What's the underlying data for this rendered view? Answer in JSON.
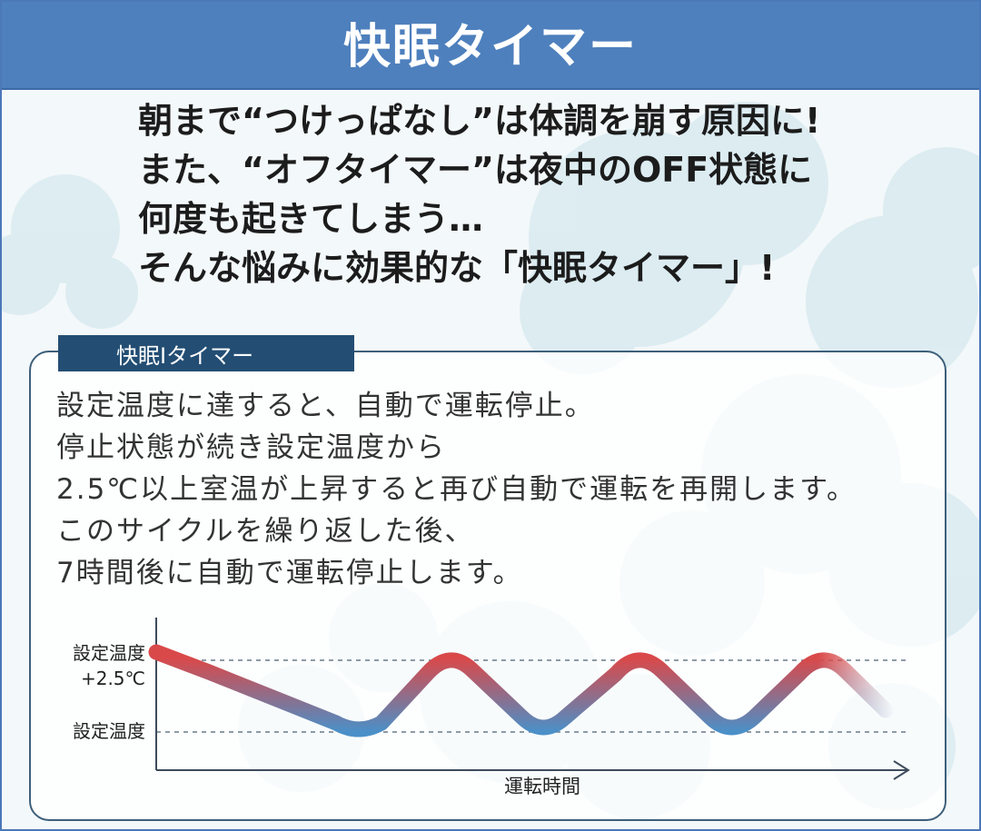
{
  "header": {
    "title": "快眠タイマー"
  },
  "intro": {
    "lines": [
      "朝まで“つけっぱなし”は体調を崩す原因に!",
      "また、“オフタイマー”は夜中のOFF状態に",
      "何度も起きてしまう…",
      "そんな悩みに効果的な「快眠タイマー」!"
    ]
  },
  "panel": {
    "tab_label": "快眠Ⅰタイマー",
    "lines": [
      "設定温度に達すると、自動で運転停止。",
      "停止状態が続き設定温度から",
      "2.5℃以上室温が上昇すると再び自動で運転を再開します。",
      "このサイクルを繰り返した後、",
      "7時間後に自動で運転停止します。"
    ]
  },
  "diagram": {
    "y_label_upper_1": "設定温度",
    "y_label_upper_2": "+2.5℃",
    "y_label_lower": "設定温度",
    "x_label": "運転時間",
    "colors": {
      "warm": "#d9494a",
      "cool": "#4a90c8",
      "axis": "#3d4c5c",
      "guide": "#6a7a8a"
    }
  }
}
